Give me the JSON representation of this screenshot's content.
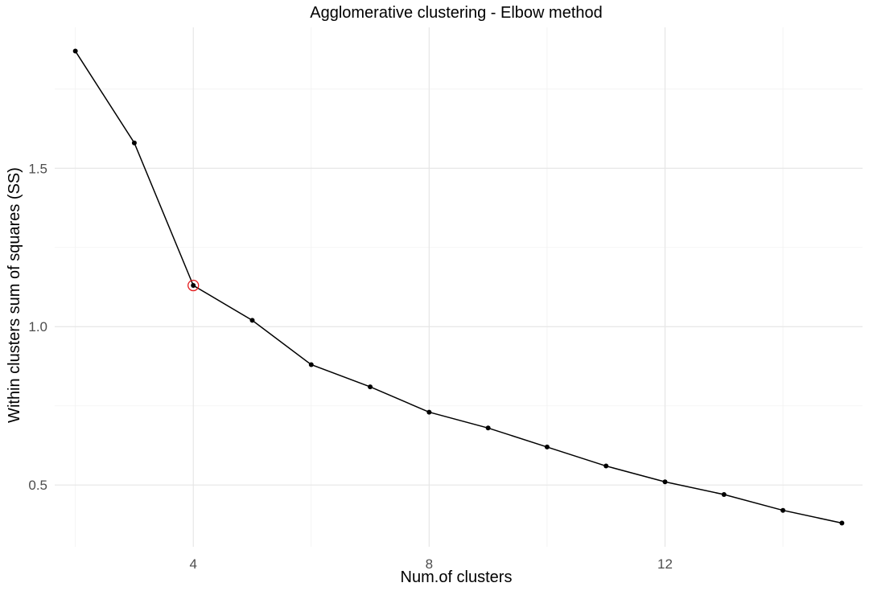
{
  "chart_data": {
    "type": "line",
    "title": "Agglomerative clustering - Elbow method",
    "xlabel": "Num.of clusters",
    "ylabel": "Within clusters sum of squares (SS)",
    "x": [
      2,
      3,
      4,
      5,
      6,
      7,
      8,
      9,
      10,
      11,
      12,
      13,
      14,
      15
    ],
    "y": [
      1.87,
      1.58,
      1.13,
      1.02,
      0.88,
      0.81,
      0.73,
      0.68,
      0.62,
      0.56,
      0.51,
      0.47,
      0.42,
      0.38
    ],
    "x_ticks": [
      "4",
      "8",
      "12"
    ],
    "y_ticks": [
      "0.5",
      "1.0",
      "1.5"
    ],
    "xlim": [
      1.65,
      15.35
    ],
    "ylim": [
      0.305,
      1.945
    ],
    "grid": true,
    "highlight": {
      "x": 4,
      "y": 1.13,
      "color": "#e31a1c"
    },
    "line_color": "#000000",
    "point_color": "#000000"
  }
}
